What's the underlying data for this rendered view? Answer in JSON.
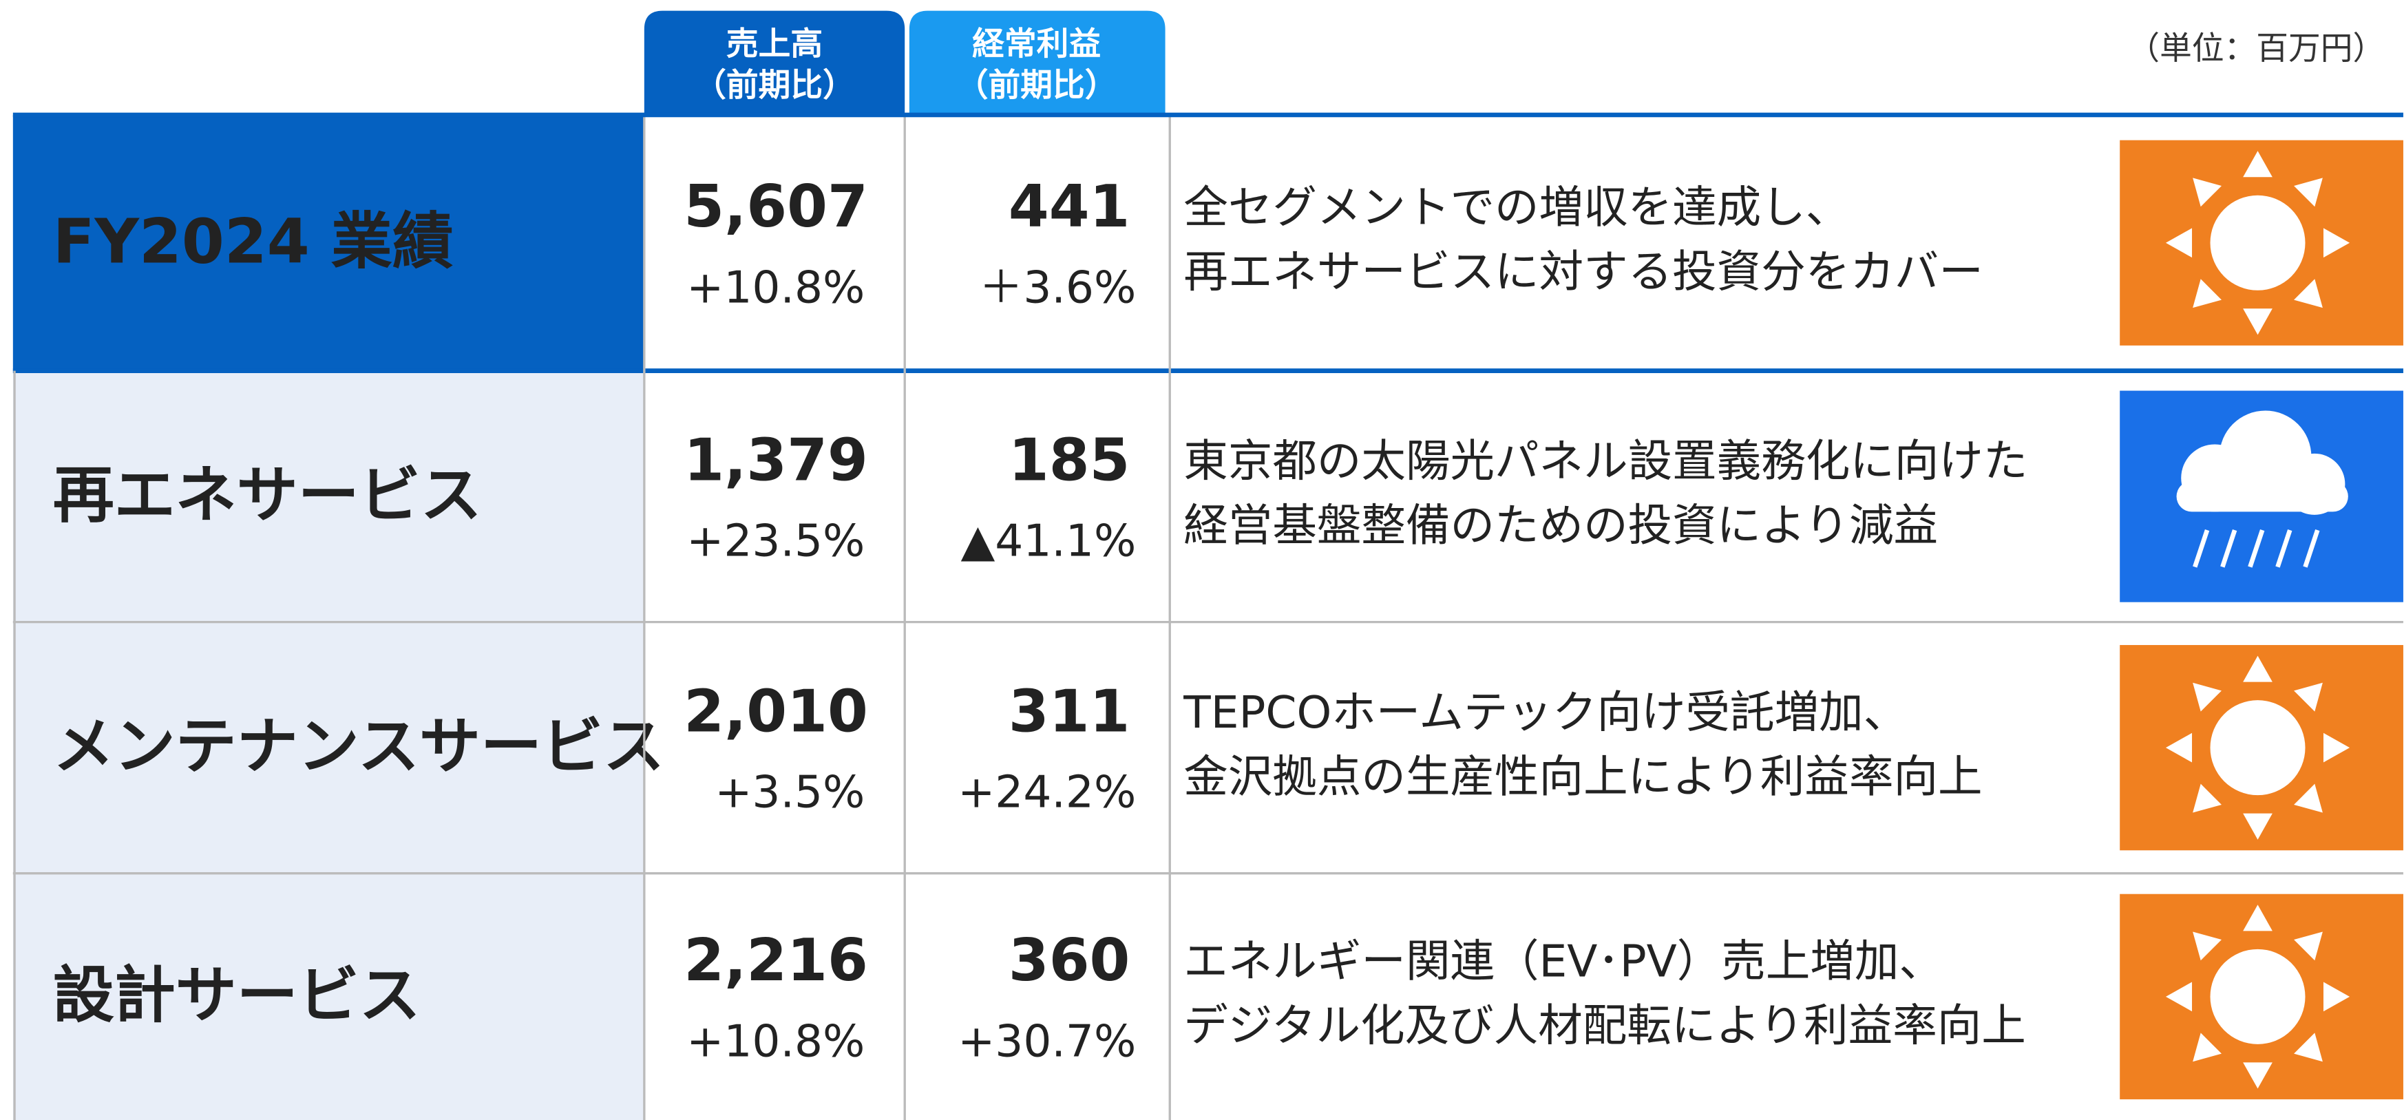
{
  "header": {
    "columns": [
      {
        "title": "売上高",
        "subtitle": "（前期比）"
      },
      {
        "title": "経常利益",
        "subtitle": "（前期比）"
      }
    ],
    "unit": "（単位：百万円）"
  },
  "table": {
    "rows": [
      {
        "label": "FY2024 業績",
        "sales": "5,607",
        "sales_change": "+10.8%",
        "profit": "441",
        "profit_change": "＋3.6%",
        "comment": [
          "全セグメントでの増収を達成し、",
          "再エネサービスに対する投資分をカバー"
        ]
      },
      {
        "label": "再エネサービス",
        "sales": "1,379",
        "sales_change": "+23.5%",
        "profit": "185",
        "profit_change": "▲41.1%",
        "comment": [
          "東京都の太陽光パネル設置義務化に向けた",
          "経営基盤整備のための投資により減益"
        ]
      },
      {
        "label": "メンテナンスサービス",
        "sales": "2,010",
        "sales_change": "+3.5%",
        "profit": "311",
        "profit_change": "+24.2%",
        "comment": [
          "TEPCOホームテック向け受託増加、",
          "金沢拠点の生産性向上により利益率向上"
        ]
      },
      {
        "label": "設計サービス",
        "sales": "2,216",
        "sales_change": "+10.8%",
        "profit": "360",
        "profit_change": "+30.7%",
        "comment": [
          "エネルギー関連（EV･PV）売上増加、",
          "デジタル化及び人材配転により利益率向上"
        ]
      }
    ]
  }
}
